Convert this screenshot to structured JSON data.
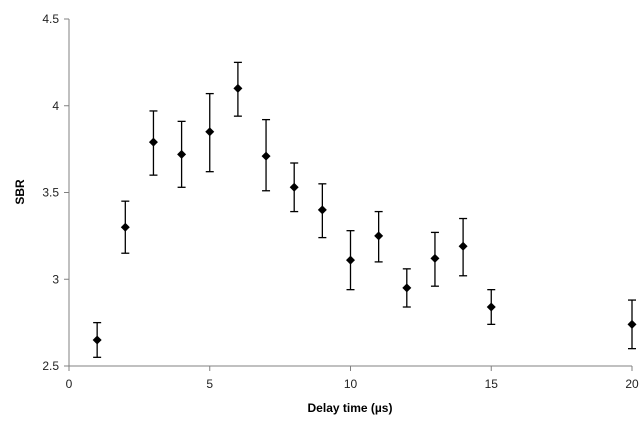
{
  "chart_data": {
    "type": "scatter",
    "xlabel": "Delay time (µs)",
    "ylabel": "SBR",
    "xlim": [
      0,
      20
    ],
    "ylim": [
      2.5,
      4.5
    ],
    "x_ticks": [
      "0",
      "5",
      "10",
      "15",
      "20"
    ],
    "y_ticks": [
      "2.5",
      "3",
      "3.5",
      "4",
      "4.5"
    ],
    "grid": false,
    "legend": "none",
    "marker": "diamond",
    "marker_color": "#000000",
    "series": [
      {
        "x": [
          1,
          2,
          3,
          4,
          5,
          6,
          7,
          8,
          9,
          10,
          11,
          12,
          13,
          14,
          15,
          20
        ],
        "y": [
          2.65,
          3.3,
          3.79,
          3.72,
          3.85,
          4.1,
          3.71,
          3.53,
          3.4,
          3.11,
          3.25,
          2.95,
          3.12,
          3.19,
          2.84,
          2.74
        ],
        "err_low": [
          2.55,
          3.15,
          3.6,
          3.53,
          3.62,
          3.94,
          3.51,
          3.39,
          3.24,
          2.94,
          3.1,
          2.84,
          2.96,
          3.02,
          2.74,
          2.6
        ],
        "err_high": [
          2.75,
          3.45,
          3.97,
          3.91,
          4.07,
          4.25,
          3.92,
          3.67,
          3.55,
          3.28,
          3.39,
          3.06,
          3.27,
          3.35,
          2.94,
          2.88
        ]
      }
    ]
  }
}
